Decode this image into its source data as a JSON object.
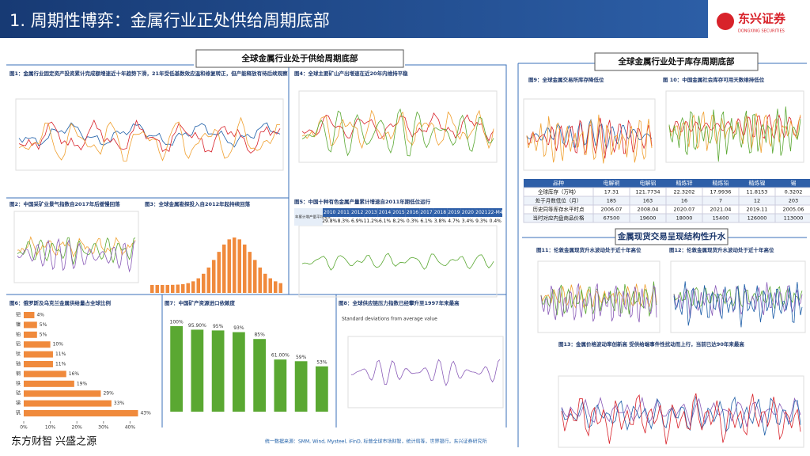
{
  "header": {
    "title": "1. 周期性博弈：金属行业正处供给周期底部",
    "logo": "东兴证券",
    "logo_sub": "DONGXING SECURITIES"
  },
  "sections": [
    "全球金属行业处于供给周期底部",
    "全球金属行业处于库存周期底部",
    "金属现货交易呈现结构性升水"
  ],
  "captions": {
    "fig1": "图1：金属行业固定资产投资累计完成额增速近十年趋势下滑，21年受低基数效应温和修复转正，但产能释放有待后续观察",
    "fig4": "图4：全球主要矿山产出增速在近20年内维持平稳",
    "fig2": "图2：中国采矿业景气指数自2017年后缓慢回落",
    "fig3": "图3：全球金属勘探投入自2012年起持续回落",
    "fig5": "图5：中国十种有色金属产量累计增速自2011年期低位运行",
    "fig6": "图6：俄罗斯及乌克兰金属供给量占全球比例",
    "fig7": "图7：中国矿产资源进口依赖度",
    "fig8": "图8：全球供应链压力指数已经攀升至1997年来最高",
    "fig8_axis": "Standard deviations from average value",
    "fig9": "图9：全球金属交易所库存降低位",
    "fig10": "图 10：中国金属社会库存可用天数维持低位",
    "fig11": "图11：伦敦金属现货升水波动处于近十年高位",
    "fig12": "图12：伦敦金属现货升水波动处于近十年高位",
    "fig13": "图13：金属价格波动率创新高 受供给端事件性扰动而上行，当前已达90年来最高"
  },
  "fig5_table": {
    "row_header": "年累计增产量平均增速",
    "years": [
      "2010",
      "2011",
      "2012",
      "2013",
      "2014",
      "2015",
      "2016",
      "2017",
      "2018",
      "2019",
      "2020",
      "2021",
      "22-M4"
    ],
    "values": [
      "29.8%",
      "8.3%",
      "6.9%",
      "11.2%",
      "6.1%",
      "8.2%",
      "0.3%",
      "6.1%",
      "3.8%",
      "4.7%",
      "3.4%",
      "9.3%",
      "0.4%"
    ]
  },
  "inventory_table": {
    "header": [
      "品种",
      "电解铜",
      "电解铝",
      "精炼锌",
      "精炼铅",
      "精炼镍",
      "锡"
    ],
    "rows": [
      [
        "全球库存（万吨）",
        "17.31",
        "121.7734",
        "22.3202",
        "17.9936",
        "11.8153",
        "0.3202"
      ],
      [
        "处于月数低位（月）",
        "185",
        "163",
        "16",
        "7",
        "12",
        "203"
      ],
      [
        "历史同等库存水平时点",
        "2006.07",
        "2008.04",
        "2020.07",
        "2021.04",
        "2019.11",
        "2005.06"
      ],
      [
        "当时对应内盘商品价格",
        "67500",
        "19600",
        "18000",
        "15400",
        "126000",
        "113000"
      ]
    ]
  },
  "chart_data": [
    {
      "type": "hbar",
      "categories": [
        "钯",
        "镍",
        "铂",
        "铝",
        "钛",
        "铀",
        "钢",
        "铁",
        "钴",
        "锑",
        "钒"
      ],
      "values": [
        4,
        5,
        5,
        10,
        11,
        11,
        16,
        19,
        29,
        33,
        43
      ],
      "value_labels": [
        "4%",
        "5%",
        "5%",
        "10%",
        "11%",
        "11%",
        "16%",
        "19%",
        "29%",
        "33%",
        "43%"
      ],
      "color": "#f08a3c",
      "xlim": [
        0,
        50
      ],
      "xticks": [
        {
          "value": 0,
          "label": "0%"
        },
        {
          "value": 10,
          "label": "10%"
        },
        {
          "value": 20,
          "label": "20%"
        },
        {
          "value": 30,
          "label": "30%"
        },
        {
          "value": 40,
          "label": "40%"
        }
      ]
    },
    {
      "type": "bar",
      "categories": [
        null,
        null,
        null,
        null,
        null,
        null,
        null,
        null
      ],
      "values": [
        100,
        95.9,
        95,
        93,
        85,
        61,
        59,
        53
      ],
      "value_labels": [
        "100%",
        "95.90%",
        "95%",
        "93%",
        "85%",
        "61.00%",
        "59%",
        "53%"
      ],
      "color": "#5aa832",
      "ylim": [
        0,
        100
      ]
    }
  ],
  "footer": {
    "slogan": "东方财智 兴盛之源",
    "source": "统一数据来源：SMM, Wind, Mysteel, iFinD, 标普全球市场财智，统计局等，世界银行，东兴证券研究所"
  }
}
